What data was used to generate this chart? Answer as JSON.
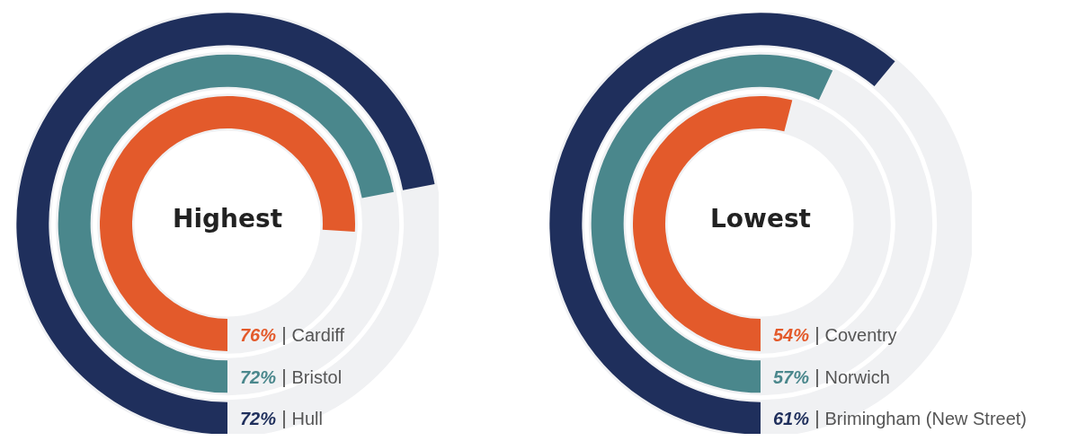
{
  "chart_data": [
    {
      "type": "other",
      "title": "Highest",
      "categories": [
        "Cardiff",
        "Bristol",
        "Hull"
      ],
      "values": [
        76,
        72,
        72
      ],
      "value_labels": [
        "76%",
        "72%",
        "72%"
      ],
      "colors": [
        "#e35a2b",
        "#4a878c",
        "#1f2f5c"
      ]
    },
    {
      "type": "other",
      "title": "Lowest",
      "categories": [
        "Coventry",
        "Norwich",
        "Brimingham (New Street)"
      ],
      "values": [
        54,
        57,
        61
      ],
      "value_labels": [
        "54%",
        "57%",
        "61%"
      ],
      "colors": [
        "#e35a2b",
        "#4a878c",
        "#1f2f5c"
      ]
    }
  ]
}
